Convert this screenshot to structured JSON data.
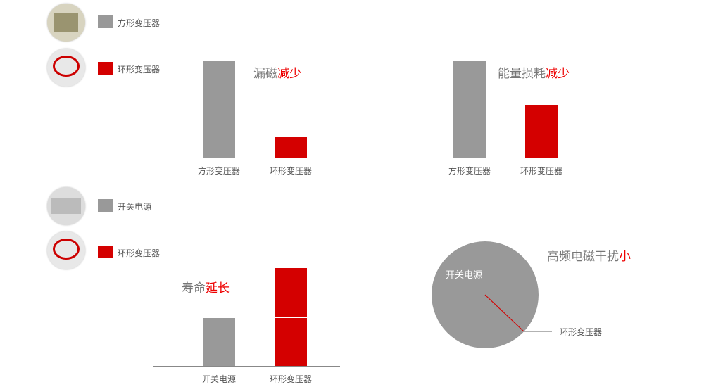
{
  "legends": [
    {
      "items": [
        {
          "label": "方形变压器",
          "color": "#999999",
          "icon": "square-transformer-photo"
        },
        {
          "label": "环形变压器",
          "color": "#d40000",
          "icon": "toroidal-transformer-photo"
        }
      ]
    },
    {
      "items": [
        {
          "label": "开关电源",
          "color": "#999999",
          "icon": "switching-power-supply-photo"
        },
        {
          "label": "环形变压器",
          "color": "#d40000",
          "icon": "toroidal-transformer-photo"
        }
      ]
    }
  ],
  "chart_data": [
    {
      "type": "bar",
      "title_main": "漏磁",
      "title_emph": "减少",
      "categories": [
        "方形变压器",
        "环形变压器"
      ],
      "values": [
        100,
        22
      ],
      "colors": [
        "#999999",
        "#d40000"
      ]
    },
    {
      "type": "bar",
      "title_main": "能量损耗",
      "title_emph": "减少",
      "categories": [
        "方形变压器",
        "环形变压器"
      ],
      "values": [
        100,
        54
      ],
      "colors": [
        "#999999",
        "#d40000"
      ]
    },
    {
      "type": "bar",
      "title_main": "寿命",
      "title_emph": "延长",
      "categories": [
        "开关电源",
        "环形变压器"
      ],
      "values": [
        100,
        204
      ],
      "colors": [
        "#999999",
        "#d40000"
      ]
    },
    {
      "type": "pie",
      "title_main": "高频电磁干扰",
      "title_emph": "小",
      "slices": [
        {
          "label": "开关电源",
          "value": 99.5,
          "color": "#999999"
        },
        {
          "label": "环形变压器",
          "value": 0.5,
          "color": "#d40000"
        }
      ]
    }
  ]
}
